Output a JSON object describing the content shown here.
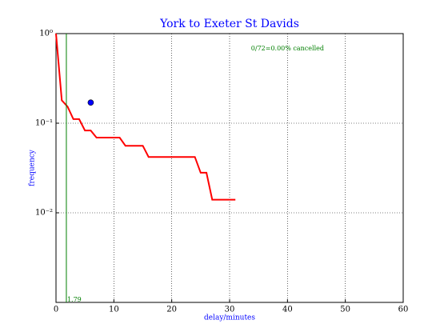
{
  "chart_data": {
    "type": "line",
    "title": "York to Exeter St Davids",
    "x_label": "delay/minutes",
    "y_label": "frequency",
    "x": [
      0,
      1,
      2,
      3,
      4,
      5,
      6,
      7,
      11,
      12,
      15,
      16,
      24,
      25,
      26,
      27,
      31
    ],
    "series": [
      {
        "color": "#ff0000",
        "values": [
          1,
          0.18,
          0.153,
          0.111,
          0.111,
          0.083,
          0.083,
          0.069,
          0.069,
          0.056,
          0.056,
          0.042,
          0.042,
          0.028,
          0.028,
          0.014,
          0.014
        ]
      }
    ],
    "marker": {
      "x": 6,
      "y": 0.17,
      "color": "#0000ff"
    },
    "vline": {
      "x": 1.79,
      "color": "#007f00"
    },
    "annotation": "0/72=0.00% cancelled",
    "xlim": [
      0,
      60
    ],
    "xticks": [
      0,
      10,
      20,
      30,
      40,
      50,
      60
    ],
    "ylim": [
      0.001,
      1
    ],
    "yticks": [
      {
        "value": 1,
        "label": "10⁰"
      },
      {
        "value": 0.1,
        "label": "10⁻¹"
      },
      {
        "value": 0.01,
        "label": "10⁻²"
      }
    ],
    "log_y": true,
    "grid": true
  }
}
